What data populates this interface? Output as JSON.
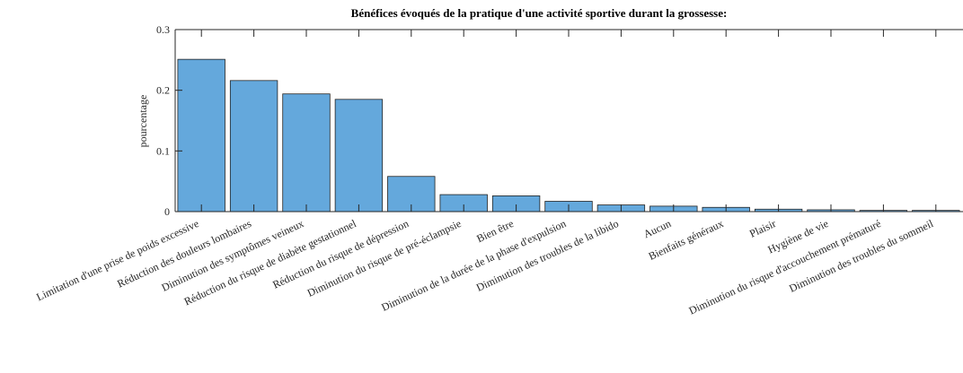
{
  "chart_data": {
    "type": "bar",
    "title": "Bénéfices évoqués de la pratique d'une activité sportive durant la grossesse:",
    "y_label": "pourcentage",
    "categories": [
      "Limitation d'une prise de poids excessive",
      "Réduction des douleurs lombaires",
      "Diminution des symptômes veineux",
      "Réduction du risque de diabète gestationnel",
      "Réduction du risque de dépression",
      "Diminution du risque de pré-éclampsie",
      "Bien être",
      "Diminution de la durée de la phase d'expulsion",
      "Diminution des troubles de la libido",
      "Aucun",
      "Bienfaits généraux",
      "Plaisir",
      "Hygiène de vie",
      "Diminution du risque d'accouchement prématuré",
      "Diminution des troubles du sommeil"
    ],
    "values": [
      0.251,
      0.216,
      0.194,
      0.185,
      0.058,
      0.028,
      0.026,
      0.017,
      0.011,
      0.009,
      0.007,
      0.004,
      0.003,
      0.002,
      0.002
    ],
    "color": "#64a8dc",
    "ylim": [
      0,
      0.3
    ],
    "yticks": [
      0,
      0.1,
      0.2,
      0.3
    ]
  }
}
